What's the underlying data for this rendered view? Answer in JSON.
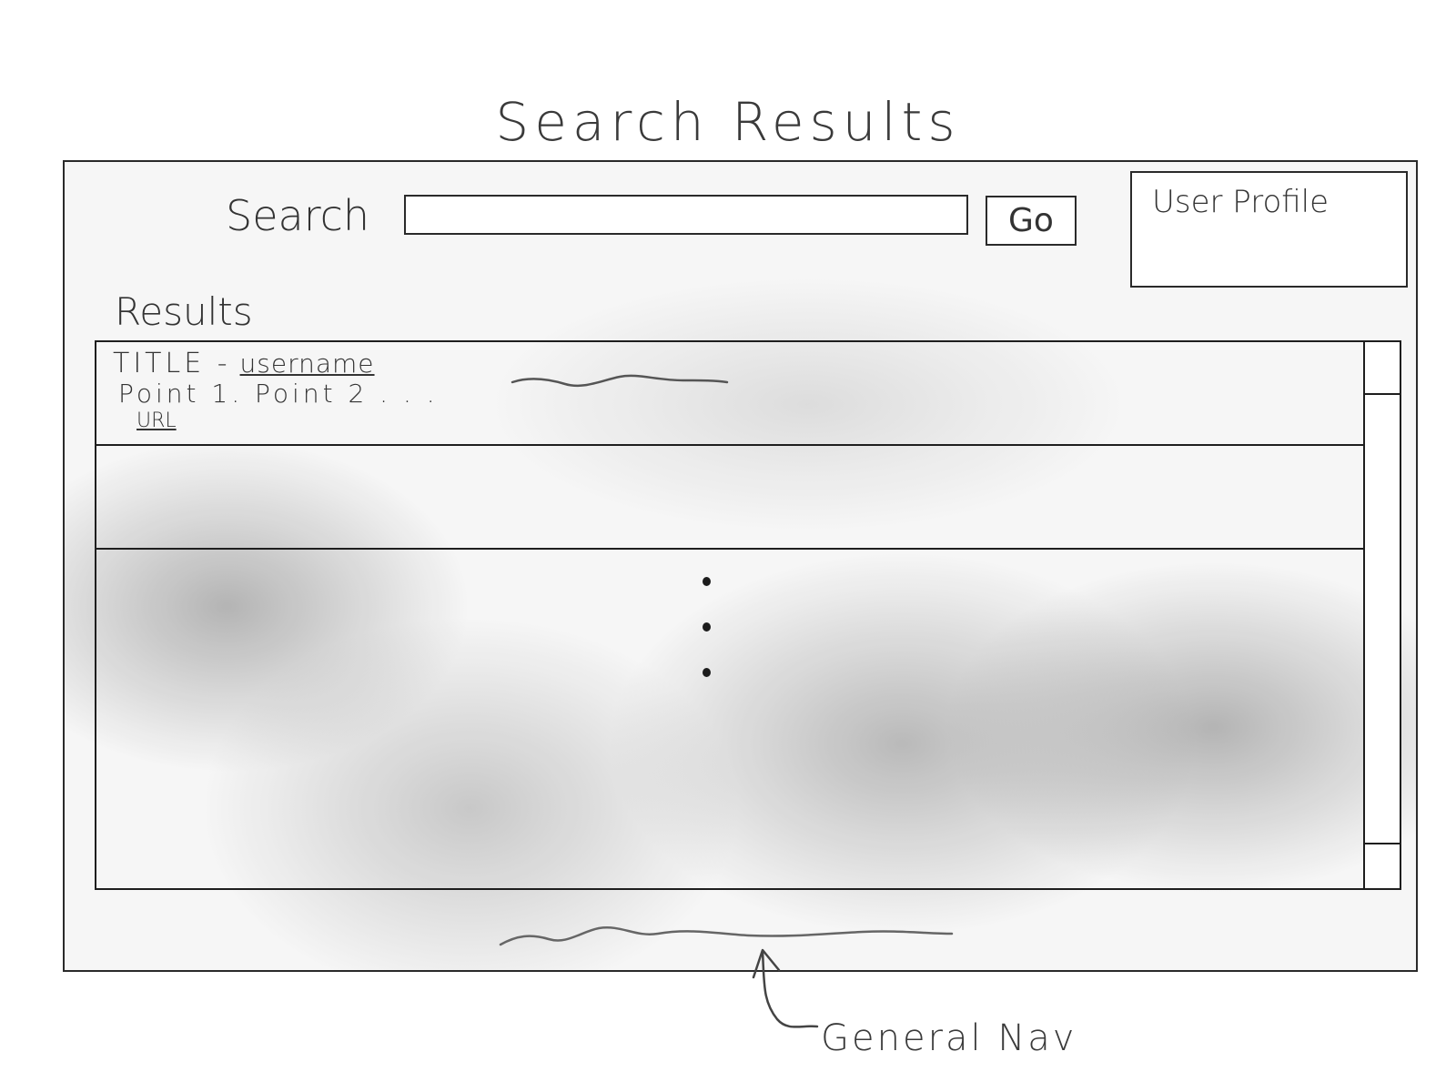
{
  "page": {
    "title": "Search Results"
  },
  "search": {
    "label": "Search",
    "value": "",
    "placeholder": "",
    "go_label": "Go"
  },
  "user_profile": {
    "label": "User Profile"
  },
  "results": {
    "label": "Results",
    "items": [
      {
        "title": "TITLE -",
        "username": "username",
        "snippet": "Point 1. Point 2 . . .",
        "url": "URL"
      },
      {
        "title": "",
        "username": "",
        "snippet": "",
        "url": ""
      }
    ]
  },
  "annotations": {
    "general_nav": "General Nav"
  },
  "icons": {
    "ellipsis": "vertical-ellipsis-icon",
    "arrow": "arrow-up-icon"
  }
}
